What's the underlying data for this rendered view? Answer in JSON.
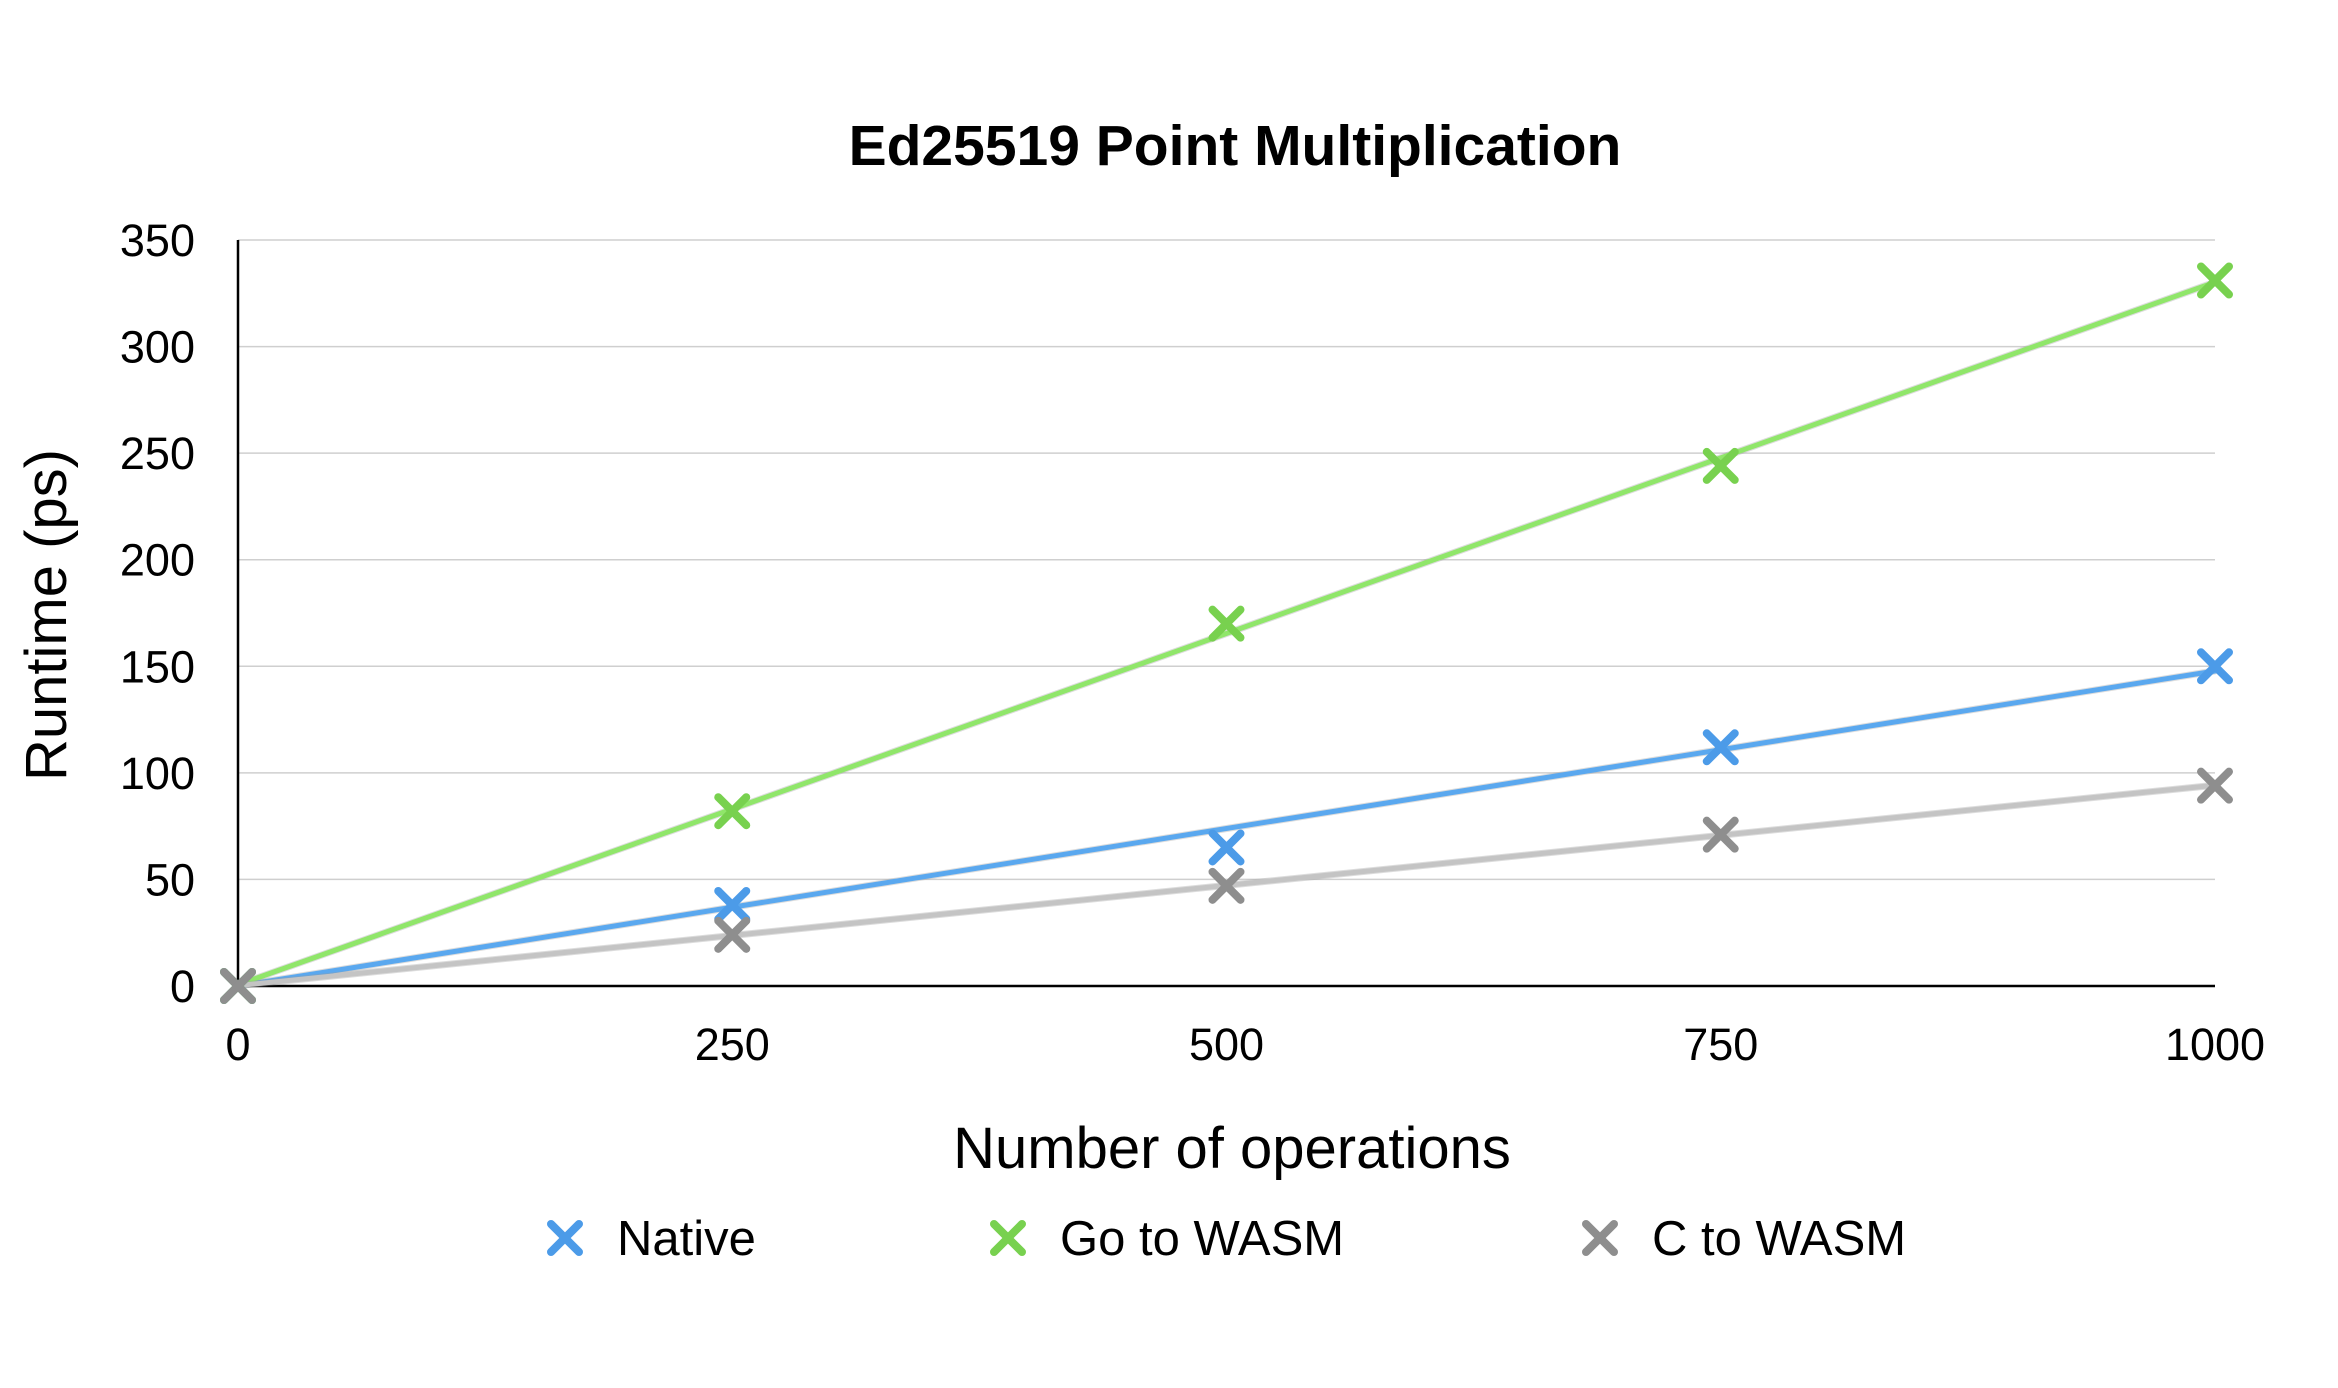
{
  "chart_data": {
    "type": "scatter",
    "title": "Ed25519 Point Multiplication",
    "xlabel": "Number of operations",
    "ylabel": "Runtime (ps)",
    "x": [
      0,
      250,
      500,
      750,
      1000
    ],
    "xlim": [
      0,
      1000
    ],
    "ylim": [
      0,
      350
    ],
    "x_ticks": [
      "0",
      "250",
      "500",
      "750",
      "1000"
    ],
    "y_ticks": [
      "0",
      "50",
      "100",
      "150",
      "200",
      "250",
      "300",
      "350"
    ],
    "grid": "horizontal",
    "legend_position": "bottom",
    "marker": "x",
    "trendlines": "linear",
    "series": [
      {
        "name": "Native",
        "color": "#4c9be8",
        "values": [
          0,
          38,
          65,
          112,
          150
        ]
      },
      {
        "name": "Go to WASM",
        "color": "#78d14f",
        "values": [
          0,
          82,
          170,
          244,
          331
        ]
      },
      {
        "name": "C to WASM",
        "color": "#8e8e8e",
        "values": [
          0,
          24,
          47,
          71,
          94
        ]
      }
    ],
    "trendline_colors": [
      "#5aa8ef",
      "#90e66a",
      "#c4c4c4"
    ]
  }
}
